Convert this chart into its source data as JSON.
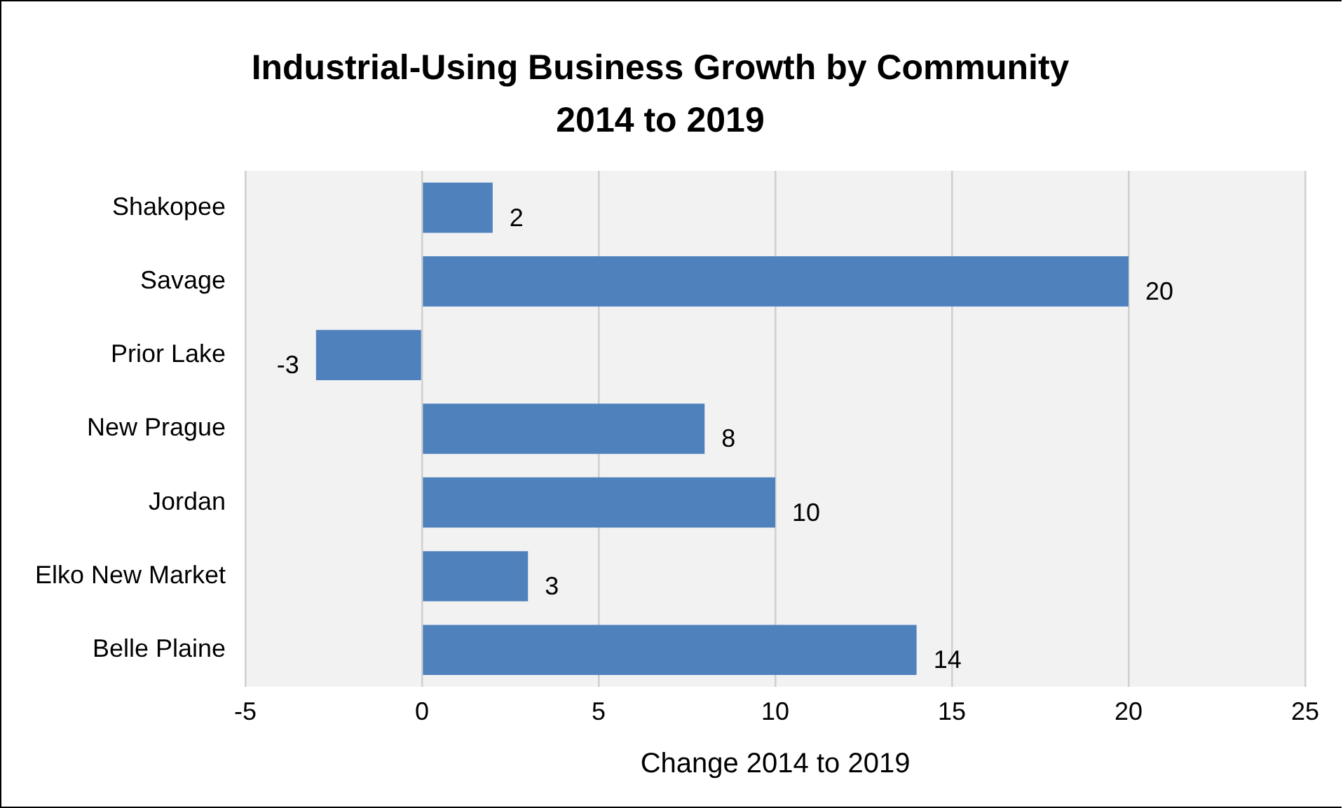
{
  "chart_data": {
    "type": "bar",
    "orientation": "horizontal",
    "title": "Industrial-Using Business Growth by Community\n2014 to 2019",
    "xlabel": "Change 2014 to 2019",
    "categories": [
      "Shakopee",
      "Savage",
      "Prior Lake",
      "New Prague",
      "Jordan",
      "Elko New Market",
      "Belle Plaine"
    ],
    "values": [
      2,
      20,
      -3,
      8,
      10,
      3,
      14
    ],
    "color": "#4f81bd",
    "xlim": [
      -5,
      25
    ],
    "xticks": [
      -5,
      0,
      5,
      10,
      15,
      20,
      25
    ],
    "grid": "x",
    "data_labels": true
  }
}
